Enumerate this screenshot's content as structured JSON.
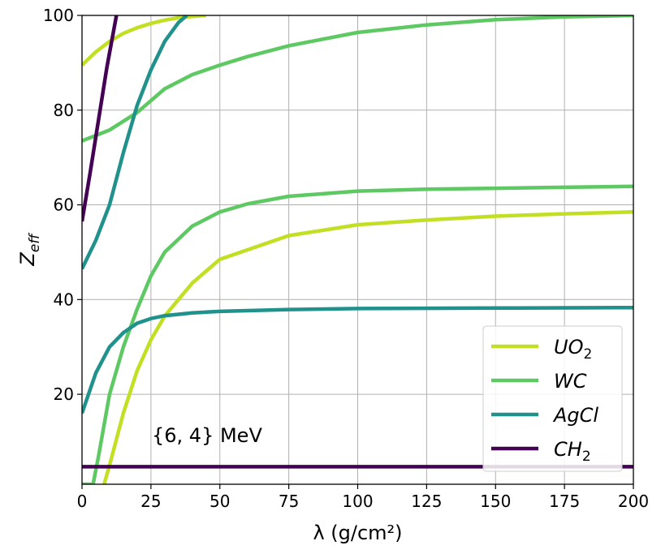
{
  "chart_data": {
    "type": "line",
    "title": "",
    "xlabel": "λ (g/cm²)",
    "ylabel": "Z_eff",
    "xlim": [
      0,
      200
    ],
    "ylim": [
      1,
      100
    ],
    "xticks": [
      0,
      25,
      50,
      75,
      100,
      125,
      150,
      175,
      200
    ],
    "yticks": [
      20,
      40,
      60,
      80,
      100
    ],
    "grid": true,
    "legend_position": "lower-right",
    "annotation": "{6, 4} MeV",
    "series": [
      {
        "name": "UO2",
        "name_main": "UO",
        "name_sub": "2",
        "color": "#c2df23",
        "segments": [
          {
            "x": [
              0,
              5,
              10,
              15,
              20,
              25,
              30,
              35,
              40,
              45
            ],
            "y": [
              89.5,
              92.3,
              94.5,
              96.2,
              97.4,
              98.3,
              99.0,
              99.5,
              99.8,
              100
            ]
          },
          {
            "x": [
              8,
              10,
              15,
              20,
              25,
              30,
              40,
              50,
              75,
              100,
              125,
              150,
              175,
              200
            ],
            "y": [
              1,
              5,
              16,
              25,
              31.5,
              36.5,
              43.5,
              48.5,
              53.5,
              55.8,
              56.8,
              57.6,
              58.1,
              58.5
            ]
          }
        ]
      },
      {
        "name": "WC",
        "name_main": "WC",
        "name_sub": "",
        "color": "#5ec962",
        "segments": [
          {
            "x": [
              0,
              10,
              20,
              30,
              40,
              50,
              60,
              75,
              100,
              125,
              150,
              175,
              200
            ],
            "y": [
              73.5,
              75.8,
              79.5,
              84.5,
              87.5,
              89.5,
              91.3,
              93.6,
              96.4,
              98.0,
              99.1,
              99.7,
              100
            ]
          },
          {
            "x": [
              0,
              4,
              6,
              10,
              15,
              20,
              25,
              30,
              40,
              50,
              60,
              75,
              100,
              125,
              150,
              175,
              200
            ],
            "y": [
              1,
              1,
              7,
              20,
              30,
              38,
              45,
              50,
              55.5,
              58.5,
              60.2,
              61.8,
              62.9,
              63.3,
              63.5,
              63.7,
              63.9
            ]
          }
        ]
      },
      {
        "name": "AgCl",
        "name_main": "AgCl",
        "name_sub": "",
        "color": "#21918c",
        "segments": [
          {
            "x": [
              0,
              5,
              10,
              15,
              20,
              25,
              30,
              35,
              38
            ],
            "y": [
              46.5,
              52.5,
              60,
              71,
              81,
              88.5,
              94.5,
              98.5,
              100
            ]
          },
          {
            "x": [
              0,
              5,
              10,
              15,
              20,
              25,
              30,
              40,
              50,
              75,
              100,
              150,
              200
            ],
            "y": [
              16,
              24.5,
              30,
              33,
              35,
              36,
              36.6,
              37.2,
              37.5,
              37.9,
              38.1,
              38.2,
              38.3
            ]
          }
        ]
      },
      {
        "name": "CH2",
        "name_main": "CH",
        "name_sub": "2",
        "color": "#440154",
        "segments": [
          {
            "x": [
              0,
              3,
              6,
              9,
              12.5
            ],
            "y": [
              56.5,
              67,
              78,
              89,
              100
            ]
          },
          {
            "x": [
              0,
              200
            ],
            "y": [
              4.7,
              4.7
            ]
          }
        ]
      }
    ]
  }
}
